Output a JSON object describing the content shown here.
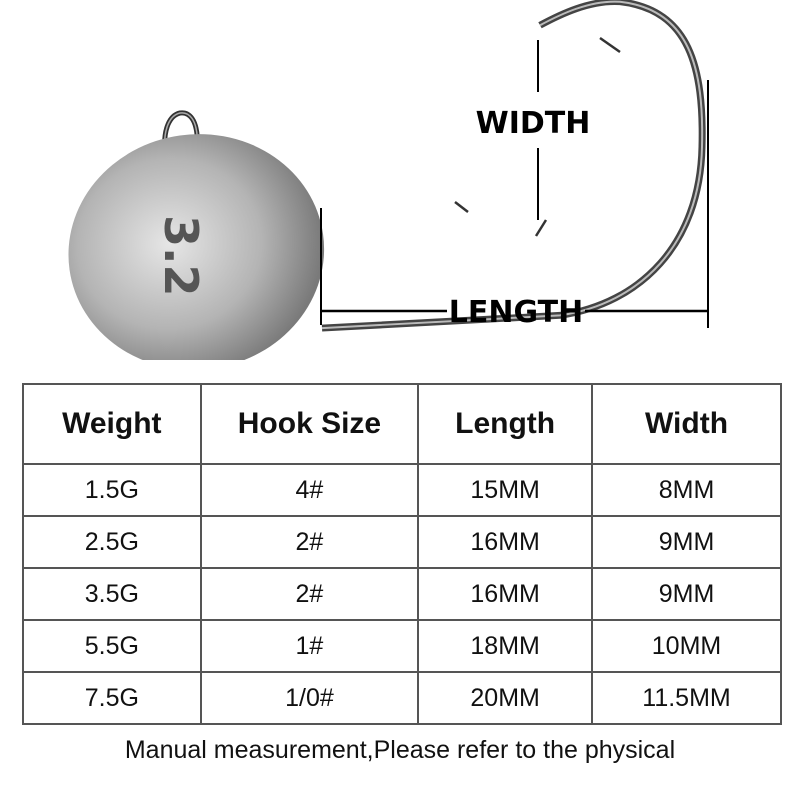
{
  "diagram": {
    "width_label": "WIDTH",
    "length_label": "LENGTH",
    "head_marking": "3.2"
  },
  "table": {
    "headers": [
      "Weight",
      "Hook Size",
      "Length",
      "Width"
    ],
    "rows": [
      [
        "1.5G",
        "4#",
        "15MM",
        "8MM"
      ],
      [
        "2.5G",
        "2#",
        "16MM",
        "9MM"
      ],
      [
        "3.5G",
        "2#",
        "16MM",
        "9MM"
      ],
      [
        "5.5G",
        "1#",
        "18MM",
        "10MM"
      ],
      [
        "7.5G",
        "1/0#",
        "20MM",
        "11.5MM"
      ]
    ]
  },
  "note": "Manual measurement,Please refer to the physical"
}
